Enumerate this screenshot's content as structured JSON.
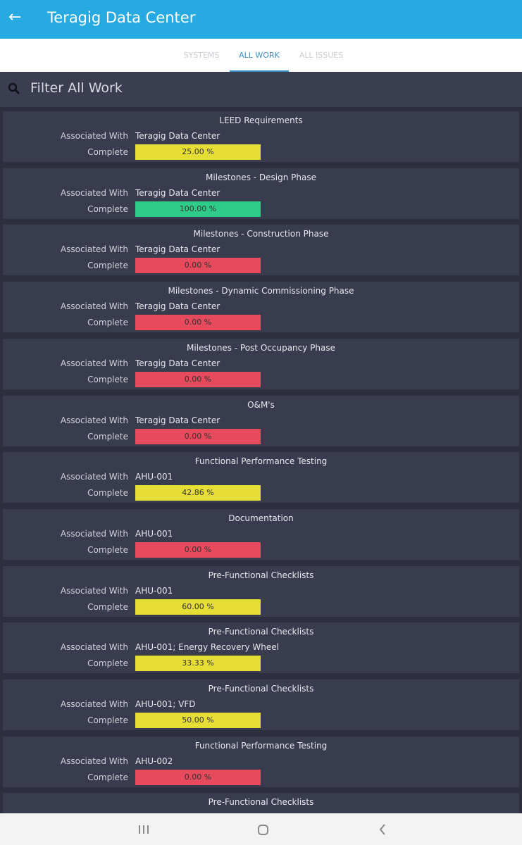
{
  "header": {
    "title": "Teragig Data Center"
  },
  "tabs": [
    {
      "label": "SYSTEMS",
      "active": false
    },
    {
      "label": "ALL WORK",
      "active": true
    },
    {
      "label": "ALL ISSUES",
      "active": false
    }
  ],
  "search": {
    "placeholder": "Filter All Work"
  },
  "labels": {
    "associated": "Associated With",
    "complete": "Complete"
  },
  "items": [
    {
      "title": "LEED Requirements",
      "associated": "Teragig Data Center",
      "complete": "25.00 %",
      "color": "#e6dd35"
    },
    {
      "title": "Milestones - Design Phase",
      "associated": "Teragig Data Center",
      "complete": "100.00 %",
      "color": "#2fcb88"
    },
    {
      "title": "Milestones - Construction Phase",
      "associated": "Teragig Data Center",
      "complete": "0.00 %",
      "color": "#e64a5c"
    },
    {
      "title": "Milestones - Dynamic Commissioning Phase",
      "associated": "Teragig Data Center",
      "complete": "0.00 %",
      "color": "#e64a5c"
    },
    {
      "title": "Milestones - Post Occupancy Phase",
      "associated": "Teragig Data Center",
      "complete": "0.00 %",
      "color": "#e64a5c"
    },
    {
      "title": "O&M's",
      "associated": "Teragig Data Center",
      "complete": "0.00 %",
      "color": "#e64a5c"
    },
    {
      "title": "Functional Performance Testing",
      "associated": "AHU-001",
      "complete": "42.86 %",
      "color": "#e6dd35"
    },
    {
      "title": "Documentation",
      "associated": "AHU-001",
      "complete": "0.00 %",
      "color": "#e64a5c"
    },
    {
      "title": "Pre-Functional Checklists",
      "associated": "AHU-001",
      "complete": "60.00 %",
      "color": "#e6dd35"
    },
    {
      "title": "Pre-Functional Checklists",
      "associated": "AHU-001; Energy Recovery Wheel",
      "complete": "33.33 %",
      "color": "#e6dd35"
    },
    {
      "title": "Pre-Functional Checklists",
      "associated": "AHU-001; VFD",
      "complete": "50.00 %",
      "color": "#e6dd35"
    },
    {
      "title": "Functional Performance Testing",
      "associated": "AHU-002",
      "complete": "0.00 %",
      "color": "#e64a5c"
    },
    {
      "title": "Pre-Functional Checklists"
    }
  ]
}
